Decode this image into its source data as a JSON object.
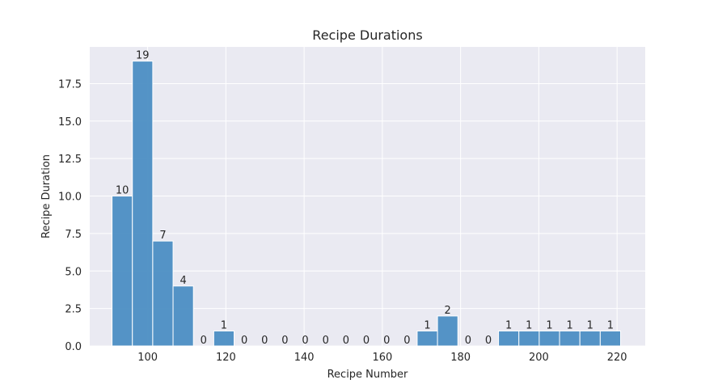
{
  "chart_data": {
    "type": "bar",
    "title": "Recipe Durations",
    "xlabel": "Recipe Number",
    "ylabel": "Recipe Duration",
    "bin_width": 5.2,
    "bins": [
      {
        "start": 90.9,
        "end": 96.1,
        "value": 10
      },
      {
        "start": 96.1,
        "end": 101.3,
        "value": 19
      },
      {
        "start": 101.3,
        "end": 106.5,
        "value": 7
      },
      {
        "start": 106.5,
        "end": 111.7,
        "value": 4
      },
      {
        "start": 111.7,
        "end": 116.9,
        "value": 0
      },
      {
        "start": 116.9,
        "end": 122.1,
        "value": 1
      },
      {
        "start": 122.1,
        "end": 127.3,
        "value": 0
      },
      {
        "start": 127.3,
        "end": 132.5,
        "value": 0
      },
      {
        "start": 132.5,
        "end": 137.7,
        "value": 0
      },
      {
        "start": 137.7,
        "end": 142.9,
        "value": 0
      },
      {
        "start": 142.9,
        "end": 148.1,
        "value": 0
      },
      {
        "start": 148.1,
        "end": 153.3,
        "value": 0
      },
      {
        "start": 153.3,
        "end": 158.5,
        "value": 0
      },
      {
        "start": 158.5,
        "end": 163.7,
        "value": 0
      },
      {
        "start": 163.7,
        "end": 168.9,
        "value": 0
      },
      {
        "start": 168.9,
        "end": 174.1,
        "value": 1
      },
      {
        "start": 174.1,
        "end": 179.3,
        "value": 2
      },
      {
        "start": 179.3,
        "end": 184.5,
        "value": 0
      },
      {
        "start": 184.5,
        "end": 189.7,
        "value": 0
      },
      {
        "start": 189.7,
        "end": 194.9,
        "value": 1
      },
      {
        "start": 194.9,
        "end": 200.1,
        "value": 1
      },
      {
        "start": 200.1,
        "end": 205.3,
        "value": 1
      },
      {
        "start": 205.3,
        "end": 210.5,
        "value": 1
      },
      {
        "start": 210.5,
        "end": 215.7,
        "value": 1
      },
      {
        "start": 215.7,
        "end": 220.9,
        "value": 1
      }
    ],
    "xlim": [
      85.2,
      227.2
    ],
    "ylim": [
      0,
      19.95
    ],
    "xticks": [
      100,
      120,
      140,
      160,
      180,
      200,
      220
    ],
    "xtick_labels": [
      "100",
      "120",
      "140",
      "160",
      "180",
      "200",
      "220"
    ],
    "yticks": [
      0,
      2.5,
      5,
      7.5,
      10,
      12.5,
      15,
      17.5
    ],
    "ytick_labels": [
      "0.0",
      "2.5",
      "5.0",
      "7.5",
      "10.0",
      "12.5",
      "15.0",
      "17.5"
    ],
    "grid": true,
    "bar_color": "#4c8ec3",
    "background_color": "#eaeaf2",
    "grid_color": "#ffffff"
  }
}
